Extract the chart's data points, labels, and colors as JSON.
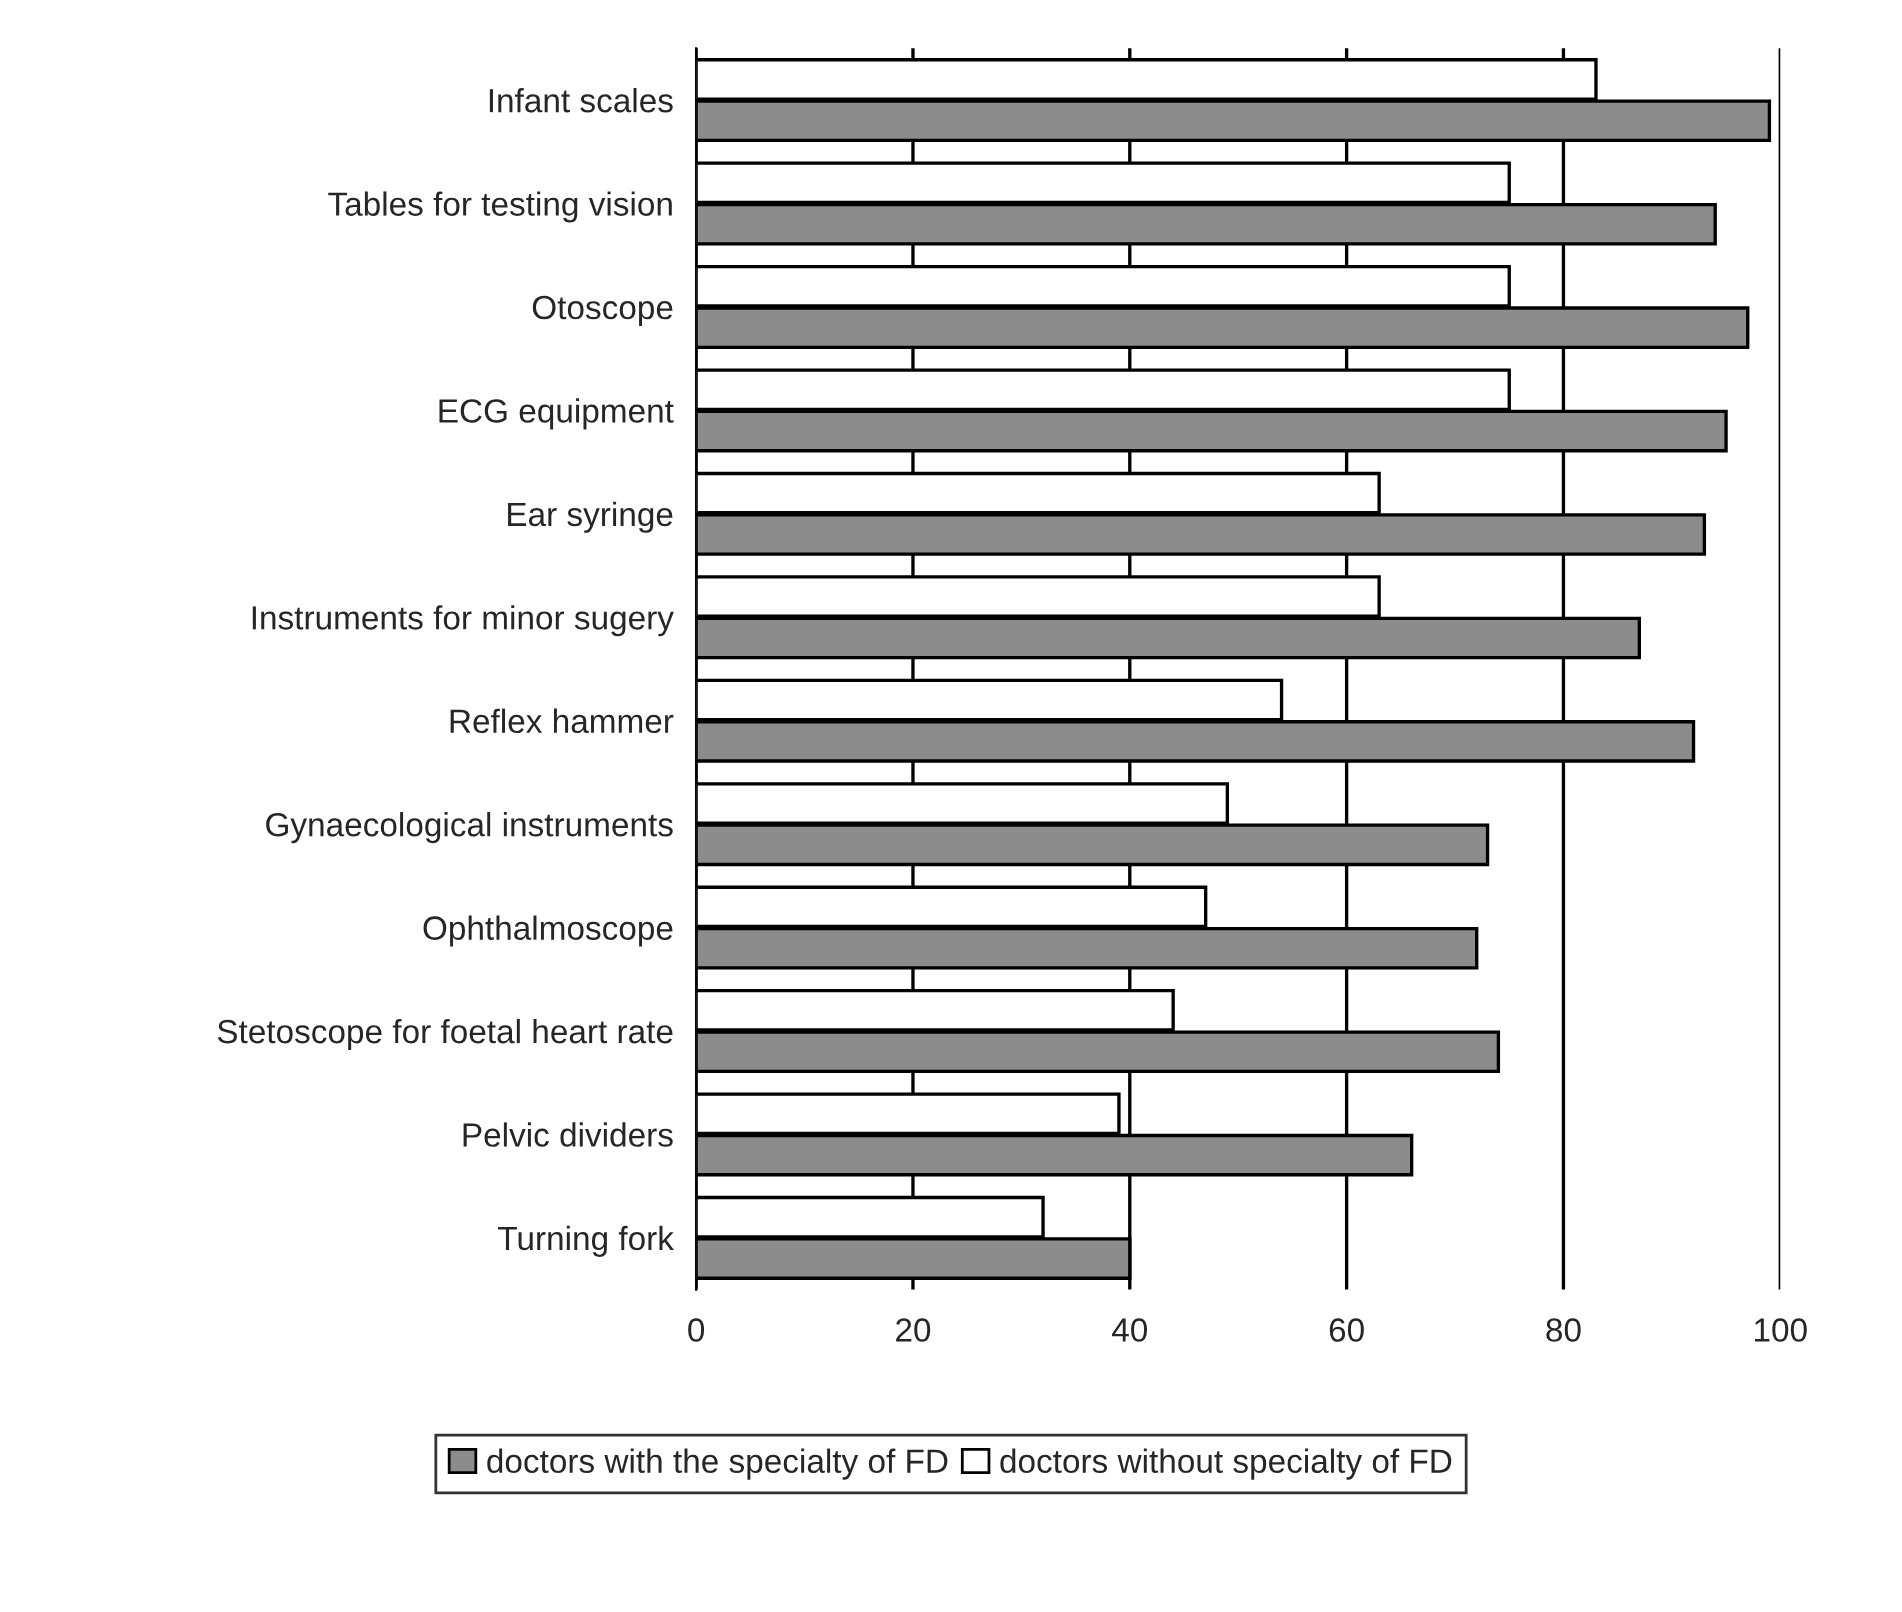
{
  "chart_data": {
    "type": "bar",
    "orientation": "horizontal",
    "categories": [
      "Infant scales",
      "Tables for testing vision",
      "Otoscope",
      "ECG equipment",
      "Ear syringe",
      "Instruments for minor sugery",
      "Reflex hammer",
      "Gynaecological instruments",
      "Ophthalmoscope",
      "Stetoscope for foetal heart rate",
      "Pelvic dividers",
      "Turning fork"
    ],
    "series": [
      {
        "name": "doctors with the specialty of FD",
        "color": "#8c8c8c",
        "values": [
          99,
          94,
          97,
          95,
          93,
          87,
          92,
          73,
          72,
          74,
          66,
          40
        ]
      },
      {
        "name": "doctors without specialty of FD",
        "color": "#ffffff",
        "values": [
          83,
          75,
          75,
          75,
          63,
          63,
          54,
          49,
          47,
          44,
          39,
          32
        ]
      }
    ],
    "xlim": [
      0,
      100
    ],
    "xticks": [
      0,
      20,
      40,
      60,
      80,
      100
    ],
    "grid": "x",
    "legend": "bottom"
  }
}
